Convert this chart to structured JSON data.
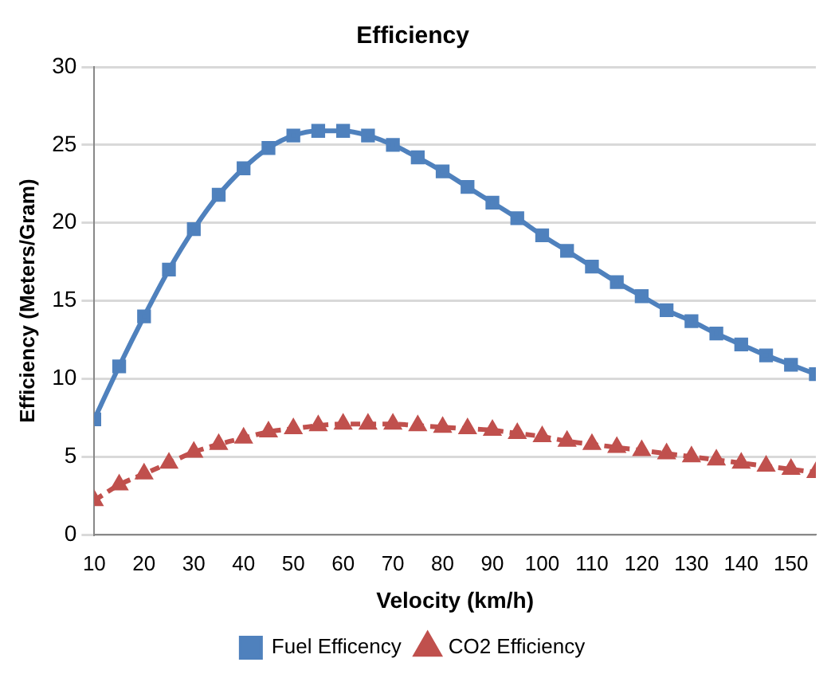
{
  "chart_data": {
    "type": "line",
    "title": "Efficiency",
    "xlabel": "Velocity (km/h)",
    "ylabel": "Efficiency (Meters/Gram)",
    "x": [
      10,
      15,
      20,
      25,
      30,
      35,
      40,
      45,
      50,
      55,
      60,
      65,
      70,
      75,
      80,
      85,
      90,
      95,
      100,
      105,
      110,
      115,
      120,
      125,
      130,
      135,
      140,
      145,
      150,
      155
    ],
    "series": [
      {
        "name": "Fuel Efficency",
        "color": "#4f81bd",
        "marker": "square",
        "line_style": "solid",
        "values": [
          7.4,
          10.8,
          14.0,
          17.0,
          19.6,
          21.8,
          23.5,
          24.8,
          25.6,
          25.9,
          25.9,
          25.6,
          25.0,
          24.2,
          23.3,
          22.3,
          21.3,
          20.3,
          19.2,
          18.2,
          17.2,
          16.2,
          15.3,
          14.4,
          13.7,
          12.9,
          12.2,
          11.5,
          10.9,
          10.3
        ]
      },
      {
        "name": "CO2 Efficiency",
        "color": "#c0504d",
        "marker": "triangle",
        "line_style": "dashed",
        "values": [
          2.2,
          3.2,
          3.9,
          4.6,
          5.3,
          5.8,
          6.2,
          6.6,
          6.8,
          7.0,
          7.1,
          7.1,
          7.1,
          7.0,
          6.9,
          6.8,
          6.7,
          6.5,
          6.3,
          6.0,
          5.8,
          5.6,
          5.4,
          5.2,
          5.0,
          4.8,
          4.6,
          4.4,
          4.2,
          4.0
        ]
      }
    ],
    "xlim": [
      10,
      155
    ],
    "xticks": [
      10,
      20,
      30,
      40,
      50,
      60,
      70,
      80,
      90,
      100,
      110,
      120,
      130,
      140,
      150
    ],
    "ylim": [
      0,
      30
    ],
    "yticks": [
      0,
      5,
      10,
      15,
      20,
      25,
      30
    ],
    "grid": "y",
    "legend": "bottom"
  }
}
